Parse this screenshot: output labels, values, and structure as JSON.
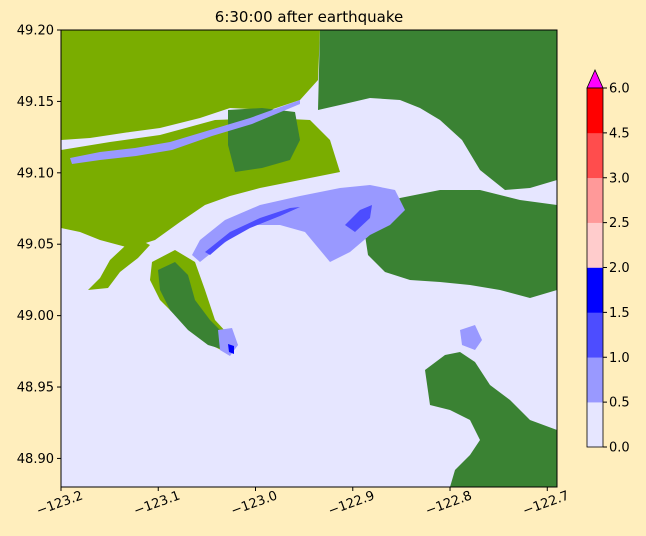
{
  "chart_data": {
    "type": "heatmap",
    "title": "6:30:00 after earthquake",
    "xlabel": "",
    "ylabel": "",
    "xlim": [
      -123.2,
      -122.69
    ],
    "ylim": [
      48.88,
      49.2
    ],
    "xticks": [
      -123.2,
      -123.1,
      -123.0,
      -122.9,
      -122.8,
      -122.7
    ],
    "xtick_labels": [
      "−123.2",
      "−123.1",
      "−123.0",
      "−122.9",
      "−122.8",
      "−122.7"
    ],
    "yticks": [
      48.9,
      48.95,
      49.0,
      49.05,
      49.1,
      49.15,
      49.2
    ],
    "ytick_labels": [
      "48.90",
      "48.95",
      "49.00",
      "49.05",
      "49.10",
      "49.15",
      "49.20"
    ],
    "colorbar": {
      "levels": [
        0.0,
        0.5,
        1.0,
        1.5,
        2.0,
        2.5,
        3.0,
        4.5,
        6.0
      ],
      "labels": [
        "0.0",
        "0.5",
        "1.0",
        "1.5",
        "2.0",
        "2.5",
        "3.0",
        "4.5",
        "6.0"
      ],
      "colors": [
        "#e6e6ff",
        "#9999ff",
        "#4d4dff",
        "#0000ff",
        "#ffcccc",
        "#ff9999",
        "#ff4d4d",
        "#ff0000"
      ],
      "extend_color": "#ff00ff",
      "extend": "max"
    },
    "land_colors": {
      "lowland": "#7aad00",
      "highland": "#3a8233",
      "water": "#e6e6ff"
    }
  }
}
